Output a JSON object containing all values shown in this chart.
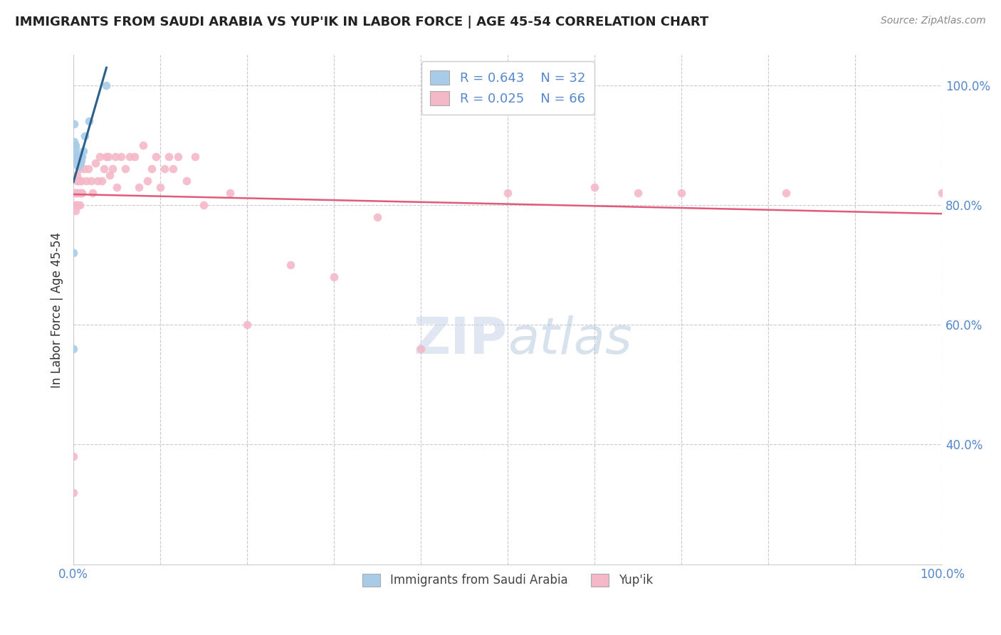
{
  "title": "IMMIGRANTS FROM SAUDI ARABIA VS YUP'IK IN LABOR FORCE | AGE 45-54 CORRELATION CHART",
  "source": "Source: ZipAtlas.com",
  "ylabel": "In Labor Force | Age 45-54",
  "legend_r1_val": "0.643",
  "legend_n1_val": "32",
  "legend_r2_val": "0.025",
  "legend_n2_val": "66",
  "legend_label1": "Immigrants from Saudi Arabia",
  "legend_label2": "Yup'ik",
  "blue_color": "#a8cce8",
  "pink_color": "#f4b8c8",
  "trendline_blue": "#2c5f8a",
  "trendline_pink": "#e05a7a",
  "grid_color": "#c8c8d8",
  "tick_color": "#5588cc",
  "background_color": "#ffffff",
  "watermark": "ZIPatlas",
  "marker_size": 70,
  "blue_points_x": [
    0.0,
    0.0,
    0.001,
    0.001,
    0.002,
    0.002,
    0.003,
    0.003,
    0.003,
    0.004,
    0.004,
    0.004,
    0.004,
    0.005,
    0.005,
    0.005,
    0.005,
    0.006,
    0.006,
    0.006,
    0.007,
    0.007,
    0.007,
    0.008,
    0.008,
    0.009,
    0.009,
    0.01,
    0.011,
    0.013,
    0.018,
    0.038
  ],
  "blue_points_y": [
    0.72,
    0.56,
    0.935,
    0.905,
    0.9,
    0.895,
    0.88,
    0.875,
    0.885,
    0.87,
    0.875,
    0.88,
    0.87,
    0.865,
    0.875,
    0.88,
    0.87,
    0.865,
    0.87,
    0.875,
    0.87,
    0.875,
    0.88,
    0.87,
    0.875,
    0.875,
    0.88,
    0.88,
    0.89,
    0.915,
    0.94,
    1.0
  ],
  "pink_points_x": [
    0.0,
    0.0,
    0.001,
    0.002,
    0.002,
    0.003,
    0.003,
    0.004,
    0.004,
    0.004,
    0.005,
    0.005,
    0.005,
    0.006,
    0.007,
    0.007,
    0.008,
    0.008,
    0.009,
    0.009,
    0.01,
    0.012,
    0.015,
    0.017,
    0.02,
    0.022,
    0.025,
    0.028,
    0.03,
    0.033,
    0.035,
    0.038,
    0.04,
    0.042,
    0.045,
    0.048,
    0.05,
    0.055,
    0.06,
    0.065,
    0.07,
    0.075,
    0.08,
    0.085,
    0.09,
    0.095,
    0.1,
    0.105,
    0.11,
    0.115,
    0.12,
    0.13,
    0.14,
    0.15,
    0.18,
    0.2,
    0.25,
    0.3,
    0.35,
    0.4,
    0.5,
    0.6,
    0.65,
    0.7,
    0.82,
    1.0
  ],
  "pink_points_y": [
    0.38,
    0.32,
    0.82,
    0.8,
    0.79,
    0.82,
    0.8,
    0.85,
    0.82,
    0.84,
    0.8,
    0.82,
    0.8,
    0.84,
    0.8,
    0.86,
    0.84,
    0.82,
    0.84,
    0.82,
    0.82,
    0.86,
    0.84,
    0.86,
    0.84,
    0.82,
    0.87,
    0.84,
    0.88,
    0.84,
    0.86,
    0.88,
    0.88,
    0.85,
    0.86,
    0.88,
    0.83,
    0.88,
    0.86,
    0.88,
    0.88,
    0.83,
    0.9,
    0.84,
    0.86,
    0.88,
    0.83,
    0.86,
    0.88,
    0.86,
    0.88,
    0.84,
    0.88,
    0.8,
    0.82,
    0.6,
    0.7,
    0.68,
    0.78,
    0.56,
    0.82,
    0.83,
    0.82,
    0.82,
    0.82,
    0.82
  ],
  "xlim": [
    0.0,
    1.0
  ],
  "ylim": [
    0.2,
    1.05
  ],
  "yticks": [
    0.4,
    0.6,
    0.8,
    1.0
  ],
  "ytick_labels": [
    "40.0%",
    "60.0%",
    "80.0%",
    "100.0%"
  ]
}
